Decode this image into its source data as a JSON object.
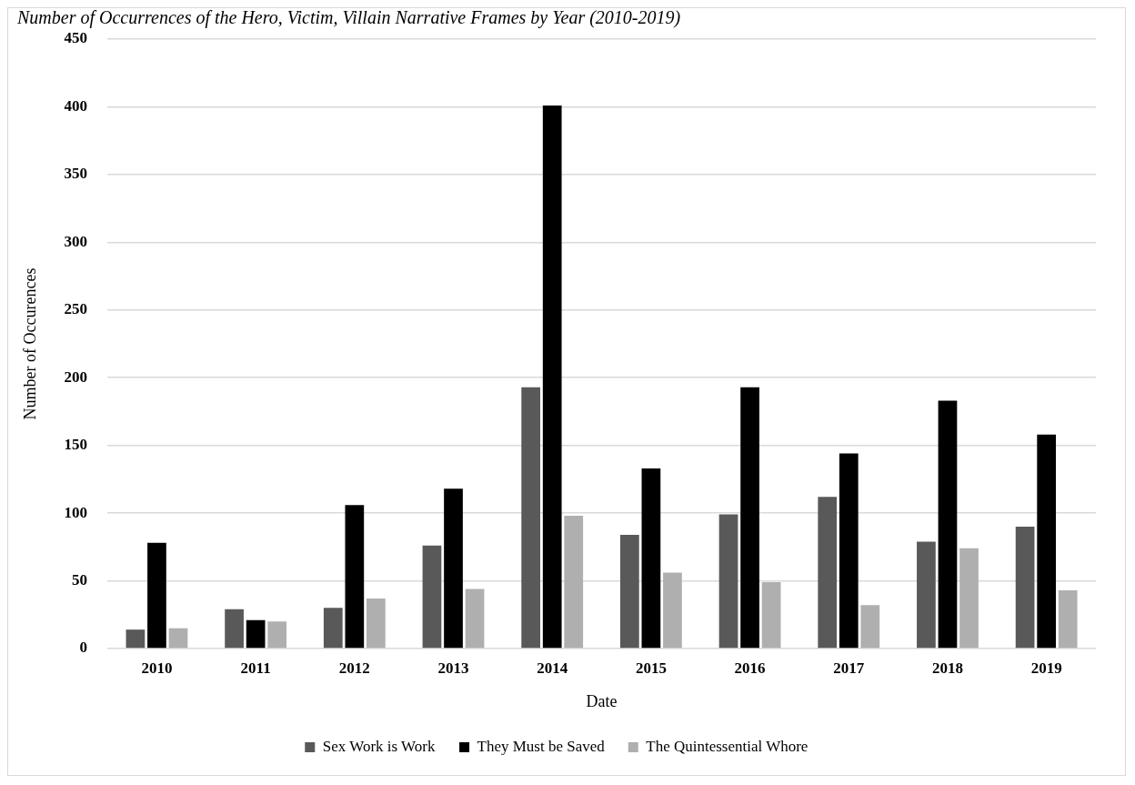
{
  "chart_data": {
    "type": "bar",
    "title": "Number of Occurrences of the Hero, Victim, Villain Narrative Frames by Year (2010-2019)",
    "xlabel": "Date",
    "ylabel": "Number of Occurences",
    "categories": [
      "2010",
      "2011",
      "2012",
      "2013",
      "2014",
      "2015",
      "2016",
      "2017",
      "2018",
      "2019"
    ],
    "series": [
      {
        "name": "Sex Work is Work",
        "color": "#595959",
        "values": [
          14,
          29,
          30,
          76,
          193,
          84,
          99,
          112,
          79,
          90
        ]
      },
      {
        "name": "They Must be Saved",
        "color": "#000000",
        "values": [
          78,
          21,
          106,
          118,
          401,
          133,
          193,
          144,
          183,
          158
        ]
      },
      {
        "name": "The Quintessential Whore",
        "color": "#afafaf",
        "values": [
          15,
          20,
          37,
          44,
          98,
          56,
          49,
          32,
          74,
          43
        ]
      }
    ],
    "ylim": [
      0,
      450
    ],
    "yticks": [
      0,
      50,
      100,
      150,
      200,
      250,
      300,
      350,
      400,
      450
    ],
    "grid": "y",
    "legend": "bottom"
  }
}
